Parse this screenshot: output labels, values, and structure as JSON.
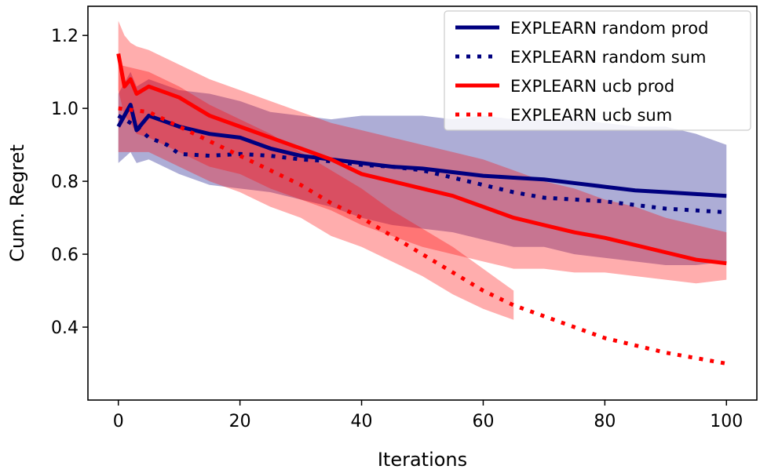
{
  "chart_data": {
    "type": "line",
    "title": "",
    "xlabel": "Iterations",
    "ylabel": "Cum. Regret",
    "xlim": [
      -5,
      105
    ],
    "ylim": [
      0.2,
      1.28
    ],
    "xticks": [
      0,
      20,
      40,
      60,
      80,
      100
    ],
    "xtick_labels": [
      "0",
      "20",
      "40",
      "60",
      "80",
      "100"
    ],
    "yticks": [
      0.4,
      0.6,
      0.8,
      1.0,
      1.2
    ],
    "ytick_labels": [
      "0.4",
      "0.6",
      "0.8",
      "1.0",
      "1.2"
    ],
    "grid": false,
    "legend_position": "top-right",
    "series": [
      {
        "name": "EXPLEARN random prod",
        "color": "#00007f",
        "style": "solid",
        "x": [
          0,
          2,
          3,
          5,
          10,
          15,
          20,
          25,
          30,
          35,
          40,
          45,
          50,
          55,
          60,
          65,
          70,
          75,
          80,
          85,
          90,
          95,
          100
        ],
        "y": [
          0.95,
          1.01,
          0.94,
          0.98,
          0.95,
          0.93,
          0.92,
          0.89,
          0.87,
          0.86,
          0.85,
          0.84,
          0.835,
          0.825,
          0.815,
          0.81,
          0.805,
          0.795,
          0.785,
          0.775,
          0.77,
          0.765,
          0.76
        ],
        "band_upper": [
          1.04,
          1.1,
          1.06,
          1.08,
          1.05,
          1.04,
          1.02,
          0.99,
          0.98,
          0.97,
          0.98,
          0.98,
          0.98,
          0.97,
          0.98,
          0.97,
          0.97,
          0.97,
          0.96,
          0.95,
          0.95,
          0.93,
          0.9
        ],
        "band_lower": [
          0.85,
          0.88,
          0.85,
          0.86,
          0.82,
          0.79,
          0.78,
          0.77,
          0.75,
          0.73,
          0.7,
          0.68,
          0.67,
          0.66,
          0.64,
          0.62,
          0.62,
          0.6,
          0.59,
          0.58,
          0.57,
          0.57,
          0.58
        ]
      },
      {
        "name": "EXPLEARN random sum",
        "color": "#00007f",
        "style": "dotted",
        "x": [
          0,
          3,
          5,
          8,
          10,
          15,
          20,
          25,
          30,
          35,
          40,
          45,
          50,
          55,
          60,
          65,
          70,
          75,
          80,
          85,
          90,
          95,
          100
        ],
        "y": [
          0.98,
          0.95,
          0.92,
          0.9,
          0.875,
          0.87,
          0.875,
          0.87,
          0.86,
          0.855,
          0.845,
          0.84,
          0.83,
          0.81,
          0.79,
          0.77,
          0.755,
          0.75,
          0.745,
          0.735,
          0.725,
          0.72,
          0.715
        ],
        "band_upper": [],
        "band_lower": []
      },
      {
        "name": "EXPLEARN ucb prod",
        "color": "#ff0000",
        "style": "solid",
        "x": [
          0,
          1,
          2,
          3,
          5,
          10,
          15,
          20,
          25,
          30,
          35,
          40,
          45,
          50,
          55,
          60,
          65,
          70,
          75,
          80,
          85,
          90,
          95,
          100
        ],
        "y": [
          1.15,
          1.06,
          1.08,
          1.04,
          1.06,
          1.03,
          0.98,
          0.95,
          0.92,
          0.89,
          0.86,
          0.82,
          0.8,
          0.78,
          0.76,
          0.73,
          0.7,
          0.68,
          0.66,
          0.645,
          0.625,
          0.605,
          0.585,
          0.575
        ],
        "band_upper": [
          1.24,
          1.2,
          1.18,
          1.17,
          1.16,
          1.12,
          1.08,
          1.05,
          1.02,
          0.99,
          0.96,
          0.94,
          0.92,
          0.9,
          0.88,
          0.86,
          0.83,
          0.8,
          0.78,
          0.75,
          0.73,
          0.7,
          0.68,
          0.66
        ],
        "band_lower": [
          1.05,
          0.98,
          0.96,
          0.93,
          0.92,
          0.88,
          0.84,
          0.82,
          0.78,
          0.75,
          0.72,
          0.68,
          0.65,
          0.62,
          0.6,
          0.58,
          0.56,
          0.56,
          0.55,
          0.55,
          0.54,
          0.53,
          0.52,
          0.53
        ]
      },
      {
        "name": "EXPLEARN ucb sum",
        "color": "#ff0000",
        "style": "dotted",
        "x": [
          0,
          5,
          10,
          15,
          20,
          25,
          30,
          35,
          40,
          45,
          50,
          55,
          60,
          65,
          70,
          75,
          80,
          85,
          90,
          95,
          100
        ],
        "y": [
          1.0,
          0.99,
          0.95,
          0.91,
          0.87,
          0.83,
          0.79,
          0.74,
          0.7,
          0.65,
          0.6,
          0.55,
          0.5,
          0.46,
          0.43,
          0.4,
          0.37,
          0.35,
          0.33,
          0.315,
          0.3
        ],
        "band_upper": [
          1.12,
          1.1,
          1.06,
          1.01,
          0.97,
          0.93,
          0.88,
          0.83,
          0.78,
          0.72,
          0.67,
          0.62,
          0.56,
          0.5
        ],
        "band_lower": [
          0.88,
          0.88,
          0.84,
          0.8,
          0.77,
          0.73,
          0.7,
          0.65,
          0.62,
          0.58,
          0.54,
          0.49,
          0.45,
          0.42
        ]
      }
    ]
  }
}
